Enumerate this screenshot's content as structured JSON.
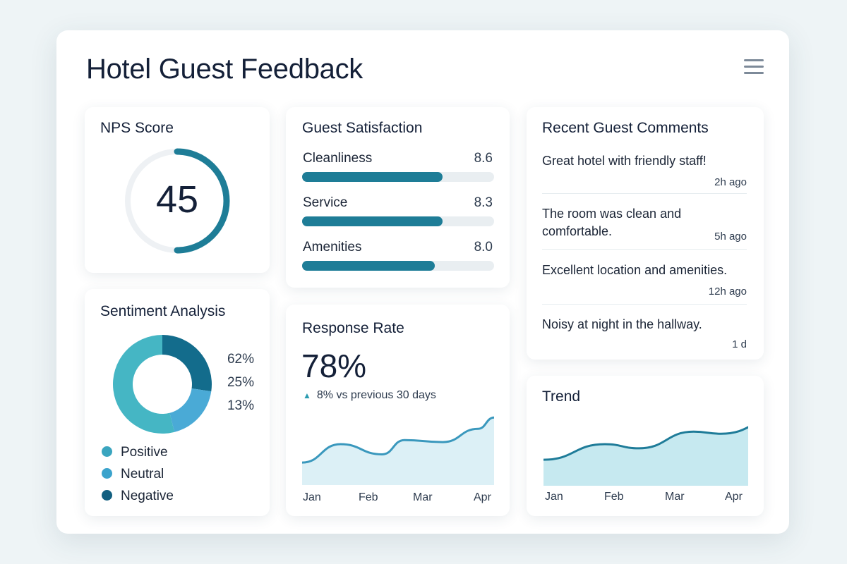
{
  "header": {
    "title": "Hotel Guest Feedback",
    "menu_icon": "hamburger-menu-icon"
  },
  "nps": {
    "title": "NPS Score",
    "value": "45",
    "fraction": 0.5,
    "color": "#1e7d97"
  },
  "satisfaction": {
    "title": "Guest Satisfaction",
    "items": [
      {
        "label": "Cleanliness",
        "value": "8.6",
        "fill": 0.73
      },
      {
        "label": "Service",
        "value": "8.3",
        "fill": 0.73
      },
      {
        "label": "Amenities",
        "value": "8.0",
        "fill": 0.69
      }
    ]
  },
  "comments": {
    "title": "Recent Guest Comments",
    "items": [
      {
        "text": "Great hotel with friendly staff!",
        "time": "2h ago"
      },
      {
        "text": "The room was clean and comfortable.",
        "time": "5h ago"
      },
      {
        "text": "Excellent location and amenities.",
        "time": "12h ago"
      },
      {
        "text": "Noisy at night in the hallway.",
        "time": "1  d"
      }
    ]
  },
  "sentiment": {
    "title": "Sentiment Analysis",
    "percentages": [
      "62%",
      "25%",
      "13%"
    ],
    "legend": [
      {
        "label": "Positive",
        "color": "#3aa5bf"
      },
      {
        "label": "Neutral",
        "color": "#3ba3cc"
      },
      {
        "label": "Negative",
        "color": "#125f80"
      }
    ]
  },
  "response": {
    "title": "Response Rate",
    "value": "78%",
    "delta": "8% vs previous 30 days",
    "delta_icon": "triangle-up-icon"
  },
  "chart_data": [
    {
      "type": "area",
      "title": "Response Rate",
      "categories": [
        "Jan",
        "Feb",
        "Mar",
        "Apr"
      ],
      "x": [
        0,
        0.6,
        1.25,
        1.6,
        2.2,
        2.75,
        3
      ],
      "values": [
        22,
        40,
        30,
        44,
        42,
        55,
        66
      ],
      "ylim": [
        0,
        80
      ],
      "grid": false
    },
    {
      "type": "area",
      "title": "Trend",
      "categories": [
        "Jan",
        "Feb",
        "Mar",
        "Apr"
      ],
      "x": [
        0,
        0.9,
        1.4,
        2.2,
        2.6,
        3.5
      ],
      "values": [
        25,
        40,
        36,
        52,
        50,
        66
      ],
      "ylim": [
        0,
        80
      ],
      "grid": false
    }
  ]
}
